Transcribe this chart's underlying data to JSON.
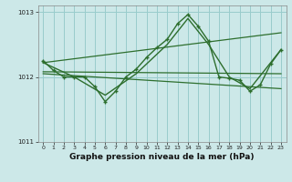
{
  "background_color": "#cce8e8",
  "grid_color": "#99cccc",
  "line_color": "#2d6e2d",
  "xlabel_label": "Graphe pression niveau de la mer (hPa)",
  "series_main": [
    [
      0,
      1012.25
    ],
    [
      1,
      1012.1
    ],
    [
      2,
      1012.0
    ],
    [
      3,
      1012.0
    ],
    [
      4,
      1012.0
    ],
    [
      5,
      1011.85
    ],
    [
      6,
      1011.62
    ],
    [
      7,
      1011.78
    ],
    [
      8,
      1012.0
    ],
    [
      9,
      1012.12
    ],
    [
      10,
      1012.3
    ],
    [
      11,
      1012.45
    ],
    [
      12,
      1012.58
    ],
    [
      13,
      1012.82
    ],
    [
      14,
      1012.96
    ],
    [
      15,
      1012.78
    ],
    [
      16,
      1012.55
    ],
    [
      17,
      1012.0
    ],
    [
      18,
      1011.98
    ],
    [
      19,
      1011.95
    ],
    [
      20,
      1011.78
    ],
    [
      21,
      1011.88
    ],
    [
      22,
      1012.2
    ],
    [
      23,
      1012.42
    ]
  ],
  "series_trend_upper": [
    [
      0,
      1012.22
    ],
    [
      23,
      1012.68
    ]
  ],
  "series_trend_mid": [
    [
      0,
      1012.08
    ],
    [
      23,
      1012.05
    ]
  ],
  "series_trend_lower": [
    [
      0,
      1012.05
    ],
    [
      23,
      1011.82
    ]
  ],
  "series_smooth": [
    [
      0,
      1012.22
    ],
    [
      3,
      1012.0
    ],
    [
      6,
      1011.72
    ],
    [
      9,
      1012.05
    ],
    [
      12,
      1012.5
    ],
    [
      14,
      1012.9
    ],
    [
      16,
      1012.5
    ],
    [
      18,
      1012.0
    ],
    [
      20,
      1011.82
    ],
    [
      23,
      1012.42
    ]
  ],
  "ylim": [
    1011.3,
    1013.1
  ],
  "yticks": [
    1011,
    1012,
    1013
  ],
  "xlim": [
    -0.5,
    23.5
  ],
  "xticks": [
    0,
    1,
    2,
    3,
    4,
    5,
    6,
    7,
    8,
    9,
    10,
    11,
    12,
    13,
    14,
    15,
    16,
    17,
    18,
    19,
    20,
    21,
    22,
    23
  ]
}
